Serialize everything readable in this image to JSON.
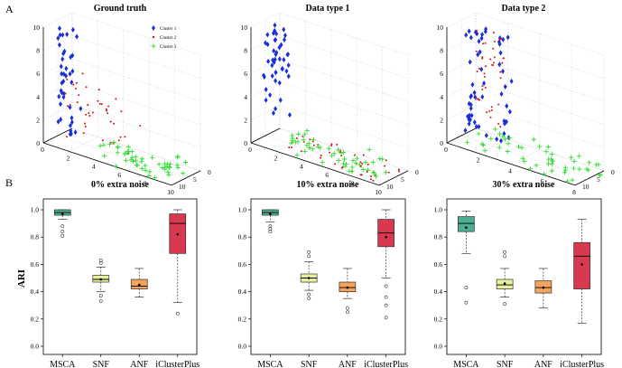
{
  "figure": {
    "panel_a_label": "A",
    "panel_b_label": "B",
    "colors": {
      "cluster1": "#1a2fd6",
      "cluster2": "#e01010",
      "cluster3": "#33dd33",
      "MSCA": "#4eae91",
      "SNF": "#e8f0a0",
      "ANF": "#f3a35c",
      "iClusterPlus": "#d8394f"
    }
  },
  "chart_data": [
    {
      "type": "scatter3d",
      "title": "Ground truth",
      "x_ticks": [
        "0",
        "2",
        "4",
        "6",
        "8",
        "10"
      ],
      "y_ticks": [
        "0",
        "5",
        "10"
      ],
      "z_ticks": [
        "0",
        "2",
        "4",
        "6",
        "8",
        "10"
      ],
      "zlim": [
        0,
        10
      ],
      "legend": [
        "Cluster 1",
        "Cluster 2",
        "Cluster 3"
      ],
      "series": [
        {
          "name": "Cluster 1",
          "marker": "diamond",
          "clusters": [
            {
              "x": [
                0,
                1.6
              ],
              "y": [
                4,
                6
              ],
              "z": [
                0.3,
                10
              ],
              "n": 40
            }
          ]
        },
        {
          "name": "Cluster 2",
          "marker": "dot",
          "clusters": [
            {
              "x": [
                1,
                6
              ],
              "y": [
                2,
                9
              ],
              "z": [
                0,
                5.5
              ],
              "n": 40
            }
          ]
        },
        {
          "name": "Cluster 3",
          "marker": "plus",
          "clusters": [
            {
              "x": [
                4,
                10
              ],
              "y": [
                2,
                10
              ],
              "z": [
                0,
                1.2
              ],
              "n": 50
            }
          ]
        }
      ]
    },
    {
      "type": "scatter3d",
      "title": "Data type 1",
      "x_ticks": [
        "0",
        "2",
        "4",
        "6",
        "8",
        "10"
      ],
      "y_ticks": [
        "0",
        "5",
        "10"
      ],
      "z_ticks": [
        "0",
        "2",
        "4",
        "6",
        "8",
        "10"
      ],
      "zlim": [
        0,
        10
      ],
      "series": [
        {
          "name": "Cluster 1",
          "marker": "diamond",
          "clusters": [
            {
              "x": [
                0,
                1.5
              ],
              "y": [
                3,
                6
              ],
              "z": [
                2,
                10
              ],
              "n": 45
            }
          ]
        },
        {
          "name": "Cluster 2",
          "marker": "dot",
          "clusters": [
            {
              "x": [
                2,
                10
              ],
              "y": [
                2,
                10
              ],
              "z": [
                0,
                0.8
              ],
              "n": 45
            }
          ]
        },
        {
          "name": "Cluster 3",
          "marker": "plus",
          "clusters": [
            {
              "x": [
                2,
                10
              ],
              "y": [
                2,
                10
              ],
              "z": [
                0,
                1.2
              ],
              "n": 50
            }
          ]
        }
      ]
    },
    {
      "type": "scatter3d",
      "title": "Data type 2",
      "x_ticks": [
        "0",
        "2",
        "4",
        "6",
        "8"
      ],
      "y_ticks": [
        "0",
        "5",
        "10"
      ],
      "z_ticks": [
        "0",
        "2",
        "4",
        "6",
        "8",
        "10"
      ],
      "zlim": [
        0,
        10
      ],
      "series": [
        {
          "name": "Cluster 1",
          "marker": "diamond",
          "clusters": [
            {
              "x": [
                0.2,
                1.4
              ],
              "y": [
                3,
                6
              ],
              "z": [
                0.5,
                10
              ],
              "n": 35
            },
            {
              "x": [
                2.2,
                2.8
              ],
              "y": [
                3,
                6
              ],
              "z": [
                0.5,
                10
              ],
              "n": 20
            }
          ]
        },
        {
          "name": "Cluster 2",
          "marker": "dot",
          "clusters": [
            {
              "x": [
                1,
                2.8
              ],
              "y": [
                3,
                7
              ],
              "z": [
                2,
                10
              ],
              "n": 40
            }
          ]
        },
        {
          "name": "Cluster 3",
          "marker": "plus",
          "clusters": [
            {
              "x": [
                1,
                9
              ],
              "y": [
                2,
                10
              ],
              "z": [
                0,
                1.5
              ],
              "n": 50
            }
          ]
        }
      ]
    },
    {
      "type": "boxplot",
      "title": "0% extra noise",
      "ylabel": "ARI",
      "ylim": [
        0,
        1
      ],
      "y_ticks": [
        "0.0",
        "0.2",
        "0.4",
        "0.6",
        "0.8",
        "1.0"
      ],
      "categories": [
        "MSCA",
        "SNF",
        "ANF",
        "iClusterPlus"
      ],
      "boxes": [
        {
          "name": "MSCA",
          "wlo": 0.93,
          "q1": 0.96,
          "med": 0.98,
          "q3": 1.0,
          "whi": 1.0,
          "mean": 0.97,
          "outliers": [
            0.88,
            0.84,
            0.81
          ]
        },
        {
          "name": "SNF",
          "wlo": 0.4,
          "q1": 0.47,
          "med": 0.49,
          "q3": 0.52,
          "whi": 0.58,
          "mean": 0.49,
          "outliers": [
            0.37,
            0.33,
            0.61,
            0.63
          ]
        },
        {
          "name": "ANF",
          "wlo": 0.36,
          "q1": 0.42,
          "med": 0.44,
          "q3": 0.49,
          "whi": 0.57,
          "mean": 0.45,
          "outliers": []
        },
        {
          "name": "iClusterPlus",
          "wlo": 0.32,
          "q1": 0.68,
          "med": 0.9,
          "q3": 0.97,
          "whi": 1.0,
          "mean": 0.82,
          "outliers": [
            0.24
          ]
        }
      ]
    },
    {
      "type": "boxplot",
      "title": "10% extra noise",
      "ylim": [
        0,
        1
      ],
      "y_ticks": [
        "0.0",
        "0.2",
        "0.4",
        "0.6",
        "0.8",
        "1.0"
      ],
      "categories": [
        "MSCA",
        "SNF",
        "ANF",
        "iClusterPlus"
      ],
      "boxes": [
        {
          "name": "MSCA",
          "wlo": 0.91,
          "q1": 0.96,
          "med": 0.98,
          "q3": 1.0,
          "whi": 1.0,
          "mean": 0.97,
          "outliers": [
            0.88,
            0.86,
            0.84
          ]
        },
        {
          "name": "SNF",
          "wlo": 0.41,
          "q1": 0.47,
          "med": 0.5,
          "q3": 0.53,
          "whi": 0.62,
          "mean": 0.5,
          "outliers": [
            0.38,
            0.35,
            0.66,
            0.69
          ]
        },
        {
          "name": "ANF",
          "wlo": 0.35,
          "q1": 0.4,
          "med": 0.43,
          "q3": 0.47,
          "whi": 0.57,
          "mean": 0.43,
          "outliers": [
            0.28,
            0.25
          ]
        },
        {
          "name": "iClusterPlus",
          "wlo": 0.5,
          "q1": 0.73,
          "med": 0.83,
          "q3": 0.93,
          "whi": 1.0,
          "mean": 0.8,
          "outliers": [
            0.44,
            0.36,
            0.3,
            0.21
          ]
        }
      ]
    },
    {
      "type": "boxplot",
      "title": "30% extra noise",
      "ylim": [
        0,
        1
      ],
      "y_ticks": [
        "0.0",
        "0.2",
        "0.4",
        "0.6",
        "0.8",
        "1.0"
      ],
      "categories": [
        "MSCA",
        "SNF",
        "ANF",
        "iClusterPlus"
      ],
      "boxes": [
        {
          "name": "MSCA",
          "wlo": 0.68,
          "q1": 0.84,
          "med": 0.9,
          "q3": 0.95,
          "whi": 0.99,
          "mean": 0.87,
          "outliers": [
            0.43,
            0.32
          ]
        },
        {
          "name": "SNF",
          "wlo": 0.36,
          "q1": 0.42,
          "med": 0.45,
          "q3": 0.49,
          "whi": 0.57,
          "mean": 0.46,
          "outliers": [
            0.31,
            0.66,
            0.69
          ]
        },
        {
          "name": "ANF",
          "wlo": 0.28,
          "q1": 0.39,
          "med": 0.43,
          "q3": 0.48,
          "whi": 0.57,
          "mean": 0.43,
          "outliers": []
        },
        {
          "name": "iClusterPlus",
          "wlo": 0.17,
          "q1": 0.42,
          "med": 0.66,
          "q3": 0.76,
          "whi": 0.93,
          "mean": 0.6,
          "outliers": []
        }
      ]
    }
  ]
}
